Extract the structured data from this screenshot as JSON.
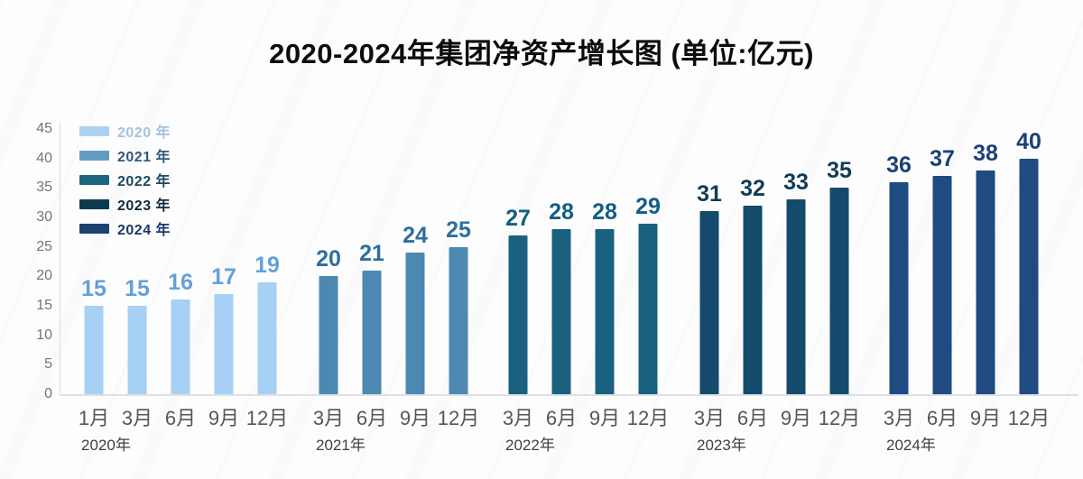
{
  "title": "2020-2024年集团净资产增长图 (单位:亿元)",
  "chart_data": {
    "type": "bar",
    "title": "2020-2024年集团净资产增长图",
    "unit_note": "单位:亿元",
    "xlabel": "",
    "ylabel": "",
    "ylim": [
      0,
      45
    ],
    "ytick_step": 5,
    "yticks": [
      0,
      5,
      10,
      15,
      20,
      25,
      30,
      35,
      40,
      45
    ],
    "grid": false,
    "legend_position": "top-left",
    "groups": [
      {
        "year_label": "2020年",
        "legend_label": "2020 年",
        "bar_color": "#a6d0f4",
        "value_label_color": "#64a0d8",
        "legend_text_color": "#a3c3df",
        "categories": [
          "1月",
          "3月",
          "6月",
          "9月",
          "12月"
        ],
        "values": [
          15,
          15,
          16,
          17,
          19
        ]
      },
      {
        "year_label": "2021年",
        "legend_label": "2021 年",
        "bar_color": "#4c88b2",
        "value_label_color": "#2f6f9d",
        "legend_text_color": "#33597a",
        "categories": [
          "3月",
          "6月",
          "9月",
          "12月"
        ],
        "values": [
          20,
          21,
          24,
          25
        ]
      },
      {
        "year_label": "2022年",
        "legend_label": "2022 年",
        "bar_color": "#19617f",
        "value_label_color": "#135e84",
        "legend_text_color": "#1c4a61",
        "categories": [
          "3月",
          "6月",
          "9月",
          "12月"
        ],
        "values": [
          27,
          28,
          28,
          29
        ]
      },
      {
        "year_label": "2023年",
        "legend_label": "2023 年",
        "bar_color": "#144a6b",
        "value_label_color": "#123b55",
        "legend_text_color": "#122c3e",
        "categories": [
          "3月",
          "6月",
          "9月",
          "12月"
        ],
        "values": [
          31,
          32,
          33,
          35
        ]
      },
      {
        "year_label": "2024年",
        "legend_label": "2024 年",
        "bar_color": "#1f4a82",
        "value_label_color": "#1b4175",
        "legend_text_color": "#1b3a66",
        "categories": [
          "3月",
          "6月",
          "9月",
          "12月"
        ],
        "values": [
          36,
          37,
          38,
          40
        ]
      }
    ],
    "legend_swatch_colors": [
      "#abd2f2",
      "#649cc4",
      "#1e657f",
      "#0e3a50",
      "#1c4070"
    ]
  }
}
